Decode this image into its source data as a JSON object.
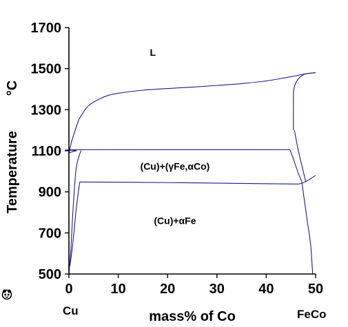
{
  "chart_data": {
    "type": "line",
    "xlabel": "mass% of Co",
    "ylabel": "Temperature",
    "ylabel_unit": "°C",
    "xlim": [
      0,
      50
    ],
    "ylim": [
      500,
      1700
    ],
    "x_ticks": [
      0,
      10,
      20,
      30,
      40,
      50
    ],
    "y_ticks": [
      500,
      700,
      900,
      1100,
      1300,
      1500,
      1700
    ],
    "x_end_labels": {
      "left": "Cu",
      "right": "FeCo"
    },
    "grid": false,
    "regions": [
      {
        "label": "L",
        "x": 17,
        "y": 1580
      },
      {
        "label_parts": [
          "(Cu)+(",
          "γ",
          "Fe,",
          "α",
          "Co)"
        ],
        "x": 21.5,
        "y": 1025
      },
      {
        "label_parts": [
          "(Cu)+",
          "α",
          "Fe"
        ],
        "x": 21.5,
        "y": 760
      }
    ],
    "lines": [
      {
        "id": "liquidus-left",
        "points": [
          [
            0,
            1085
          ],
          [
            0.5,
            1140
          ],
          [
            1,
            1180
          ],
          [
            2,
            1250
          ],
          [
            3,
            1290
          ],
          [
            4,
            1320
          ],
          [
            6,
            1350
          ],
          [
            8,
            1370
          ],
          [
            10,
            1380
          ],
          [
            15,
            1395
          ],
          [
            20,
            1403
          ],
          [
            25,
            1410
          ],
          [
            30,
            1418
          ],
          [
            35,
            1427
          ],
          [
            40,
            1440
          ],
          [
            43,
            1452
          ],
          [
            46,
            1465
          ],
          [
            48,
            1475
          ],
          [
            50,
            1480
          ]
        ]
      },
      {
        "id": "liquidus-right",
        "points": [
          [
            45.5,
            1200
          ],
          [
            45.5,
            1350
          ],
          [
            45.6,
            1400
          ],
          [
            46.2,
            1440
          ],
          [
            47.5,
            1470
          ],
          [
            49,
            1478
          ],
          [
            50,
            1480
          ]
        ]
      },
      {
        "id": "peritectic-line",
        "points": [
          [
            0,
            1090
          ],
          [
            1.5,
            1100
          ],
          [
            2.7,
            1105
          ],
          [
            44.8,
            1105
          ]
        ]
      },
      {
        "id": "gamma-boundary-upper",
        "points": [
          [
            44.8,
            1105
          ],
          [
            45.5,
            1060
          ],
          [
            46.5,
            990
          ],
          [
            47.2,
            950
          ]
        ]
      },
      {
        "id": "gamma-boundary-lower",
        "points": [
          [
            45.7,
            1200
          ],
          [
            46.5,
            1100
          ],
          [
            47.5,
            1000
          ],
          [
            48,
            950
          ]
        ]
      },
      {
        "id": "eutectoid-line",
        "points": [
          [
            2.2,
            948
          ],
          [
            20,
            945
          ],
          [
            35,
            941
          ],
          [
            46.6,
            938
          ]
        ]
      },
      {
        "id": "right-step",
        "points": [
          [
            46.6,
            938
          ],
          [
            48,
            950
          ],
          [
            50,
            980
          ]
        ]
      },
      {
        "id": "cu-solvus-upper",
        "points": [
          [
            0,
            500
          ],
          [
            0.4,
            620
          ],
          [
            0.8,
            800
          ],
          [
            1.4,
            1000
          ],
          [
            2,
            1070
          ],
          [
            2.5,
            1102
          ]
        ]
      },
      {
        "id": "cu-solvus-lower",
        "points": [
          [
            0.2,
            540
          ],
          [
            0.8,
            650
          ],
          [
            1.5,
            820
          ],
          [
            2.2,
            948
          ]
        ]
      },
      {
        "id": "fe-solvus",
        "points": [
          [
            47.2,
            948
          ],
          [
            47.6,
            880
          ],
          [
            48.3,
            760
          ],
          [
            49,
            640
          ],
          [
            49.4,
            500
          ]
        ]
      }
    ]
  }
}
